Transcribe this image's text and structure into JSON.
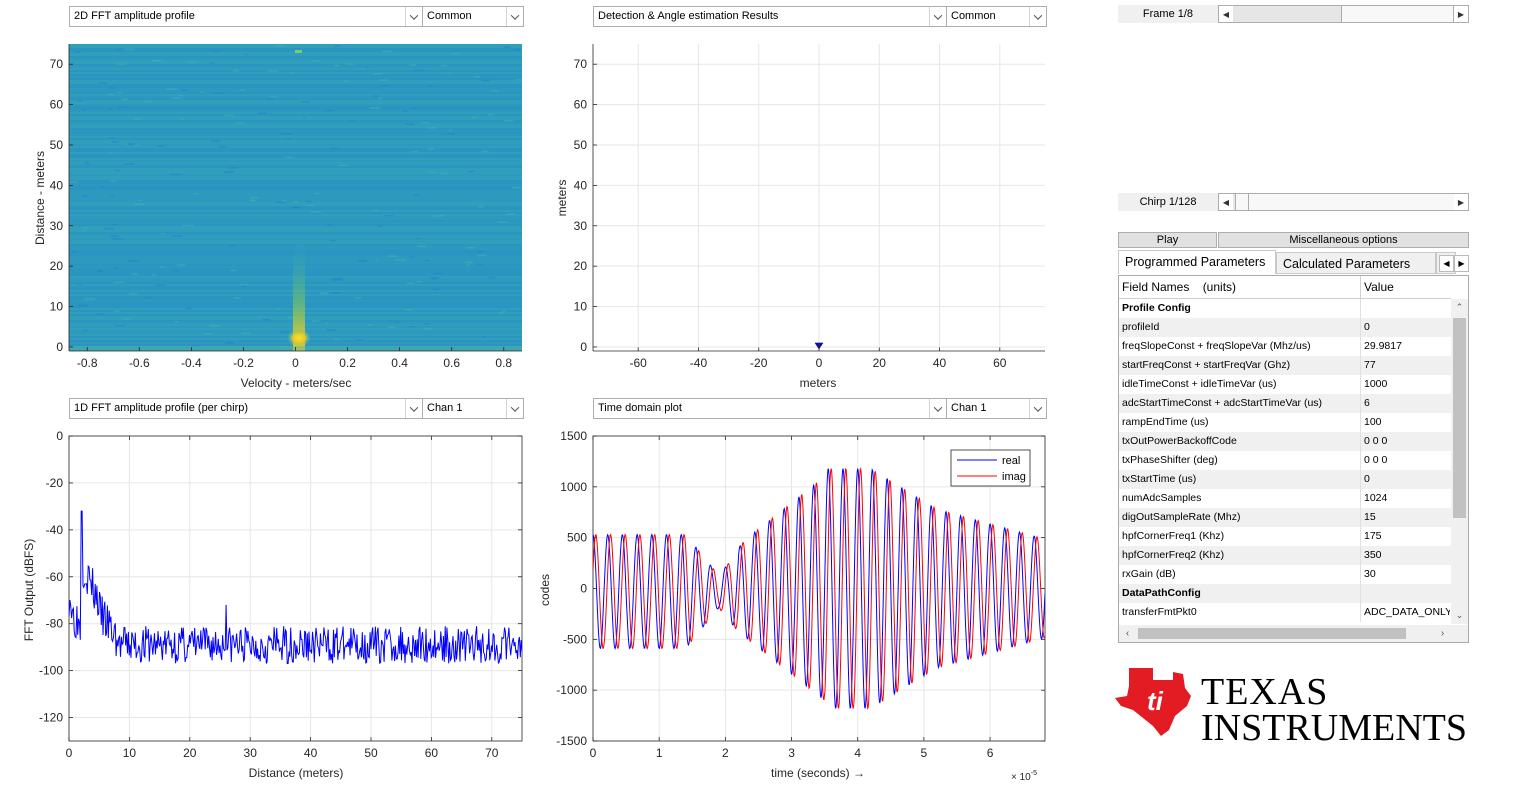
{
  "dropdowns": {
    "p1_main": "2D FFT amplitude profile",
    "p1_sub": "Common",
    "p2_main": "Detection & Angle estimation Results",
    "p2_sub": "Common",
    "p3_main": "1D FFT amplitude profile (per chirp)",
    "p3_sub": "Chan 1",
    "p4_main": "Time domain plot",
    "p4_sub": "Chan 1"
  },
  "controls": {
    "frame_label": "Frame 1/8",
    "frame_progress": 0.125,
    "chirp_label": "Chirp 1/128",
    "chirp_progress": 0.0078,
    "play_label": "Play",
    "misc_label": "Miscellaneous options",
    "tab_programmed": "Programmed Parameters",
    "tab_calculated": "Calculated Parameters",
    "tab_more": "..."
  },
  "table": {
    "col_field": "Field Names    (units)",
    "col_value": "Value",
    "rows": [
      {
        "f": "Profile Config",
        "v": "",
        "header": true
      },
      {
        "f": "profileId",
        "v": "0"
      },
      {
        "f": "freqSlopeConst + freqSlopeVar (Mhz/us)",
        "v": "29.9817"
      },
      {
        "f": "startFreqConst + startFreqVar (Ghz)",
        "v": "77"
      },
      {
        "f": "idleTimeConst + idleTimeVar (us)",
        "v": "1000"
      },
      {
        "f": "adcStartTimeConst + adcStartTimeVar (us)",
        "v": "6"
      },
      {
        "f": "rampEndTime (us)",
        "v": "100"
      },
      {
        "f": "txOutPowerBackoffCode",
        "v": "0 0 0"
      },
      {
        "f": "txPhaseShifter (deg)",
        "v": "0 0 0"
      },
      {
        "f": "txStartTime (us)",
        "v": "0"
      },
      {
        "f": "numAdcSamples",
        "v": "1024"
      },
      {
        "f": "digOutSampleRate (Mhz)",
        "v": "15"
      },
      {
        "f": "hpfCornerFreq1 (Khz)",
        "v": "175"
      },
      {
        "f": "hpfCornerFreq2 (Khz)",
        "v": "350"
      },
      {
        "f": "rxGain (dB)",
        "v": "30"
      },
      {
        "f": "DataPathConfig",
        "v": "",
        "header": true
      },
      {
        "f": "transferFmtPkt0",
        "v": "ADC_DATA_ONLY"
      }
    ]
  },
  "logo": {
    "line1": "TEXAS",
    "line2": "INSTRUMENTS",
    "color": "#e31b23"
  },
  "chart_data": [
    {
      "type": "heatmap",
      "xlabel": "Velocity - meters/sec",
      "ylabel": "Distance - meters",
      "xlim": [
        -0.87,
        0.87
      ],
      "ylim": [
        -1,
        75
      ],
      "xticks": [
        "-0.8",
        "-0.6",
        "-0.4",
        "-0.2",
        "0",
        "0.2",
        "0.4",
        "0.6",
        "0.8"
      ],
      "yticks": [
        "0",
        "10",
        "20",
        "30",
        "40",
        "50",
        "60",
        "70"
      ]
    },
    {
      "type": "scatter",
      "xlabel": "meters",
      "ylabel": "meters",
      "xlim": [
        -75,
        75
      ],
      "ylim": [
        -1,
        75
      ],
      "xticks": [
        "-60",
        "-40",
        "-20",
        "0",
        "20",
        "40",
        "60"
      ],
      "yticks": [
        "0",
        "10",
        "20",
        "30",
        "40",
        "50",
        "60",
        "70"
      ],
      "points": [
        {
          "x": 0,
          "y": 0
        }
      ]
    },
    {
      "type": "line",
      "xlabel": "Distance (meters)",
      "ylabel": "FFT Output (dBFS)",
      "xlim": [
        0,
        75
      ],
      "ylim": [
        -130,
        0
      ],
      "xticks": [
        "0",
        "10",
        "20",
        "30",
        "40",
        "50",
        "60",
        "70"
      ],
      "yticks": [
        "0",
        "-20",
        "-40",
        "-60",
        "-80",
        "-100",
        "-120"
      ],
      "line_color": "#0000ff",
      "peaks": [
        {
          "x": 2.1,
          "y": -32
        },
        {
          "x": 26,
          "y": -72
        }
      ],
      "noise_floor": -89
    },
    {
      "type": "line",
      "xlabel": "time  (seconds) →",
      "ylabel": "codes",
      "exponent": "× 10",
      "exponent_power": "-5",
      "xlim": [
        0,
        6.83
      ],
      "ylim": [
        -1500,
        1500
      ],
      "xticks": [
        "0",
        "1",
        "2",
        "3",
        "4",
        "5",
        "6"
      ],
      "yticks": [
        "1500",
        "1000",
        "500",
        "0",
        "-500",
        "-1000",
        "-1500"
      ],
      "series": [
        {
          "name": "real",
          "color": "#0000ff"
        },
        {
          "name": "imag",
          "color": "#ff0000"
        }
      ]
    }
  ]
}
